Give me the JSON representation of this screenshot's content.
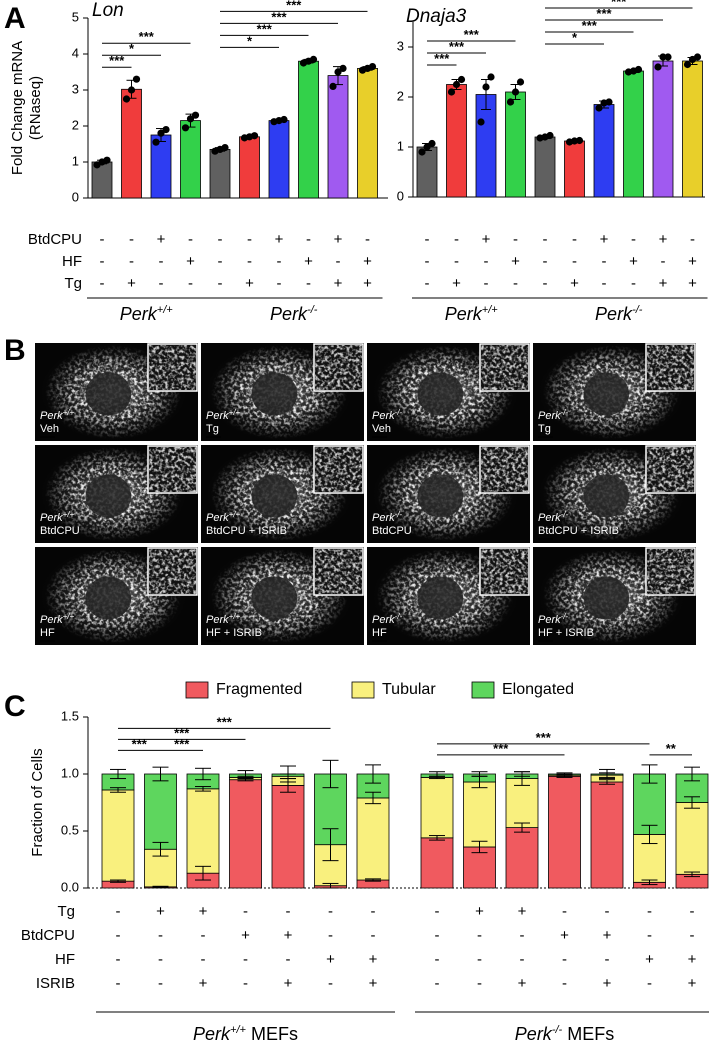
{
  "panel_labels": [
    "A",
    "B",
    "C"
  ],
  "chart_data": [
    {
      "type": "bar",
      "title": "Lon",
      "ylabel": [
        "Fold Change mRNA",
        "(RNaseq)"
      ],
      "ylim": [
        0,
        5
      ],
      "yticks": [
        0,
        1,
        2,
        3,
        4,
        5
      ],
      "conditions": [
        {
          "name": "BtdCPU",
          "color": "#2e3df2"
        },
        {
          "name": "HF",
          "color": "#33d14a"
        },
        {
          "name": "Tg",
          "color": "#f03c3c"
        }
      ],
      "groups": [
        {
          "name": "Perk",
          "sup": "+/+",
          "bars": [
            {
              "color": "#606060",
              "value": 1.0,
              "error": 0.05,
              "points": [
                0.92,
                1.0,
                1.05
              ],
              "signs": [
                "-",
                "-",
                "-"
              ]
            },
            {
              "color": "#f03c3c",
              "value": 3.02,
              "error": 0.25,
              "points": [
                2.75,
                3.0,
                3.3
              ],
              "signs": [
                "-",
                "-",
                "+"
              ]
            },
            {
              "color": "#2e3df2",
              "value": 1.75,
              "error": 0.18,
              "points": [
                1.55,
                1.8,
                1.9
              ],
              "signs": [
                "+",
                "-",
                "-"
              ]
            },
            {
              "color": "#33d14a",
              "value": 2.15,
              "error": 0.18,
              "points": [
                1.95,
                2.2,
                2.3
              ],
              "signs": [
                "-",
                "+",
                "-"
              ]
            }
          ],
          "comparisons": [
            {
              "pair": [
                0,
                1
              ],
              "label": "***"
            },
            {
              "pair": [
                0,
                2
              ],
              "label": "*"
            },
            {
              "pair": [
                0,
                3
              ],
              "label": "***"
            }
          ]
        },
        {
          "name": "Perk",
          "sup": "-/-",
          "bars": [
            {
              "color": "#606060",
              "value": 1.35,
              "error": 0.05,
              "points": [
                1.3,
                1.35,
                1.4
              ],
              "signs": [
                "-",
                "-",
                "-"
              ]
            },
            {
              "color": "#f03c3c",
              "value": 1.7,
              "error": 0.03,
              "points": [
                1.67,
                1.7,
                1.73
              ],
              "signs": [
                "-",
                "-",
                "+"
              ]
            },
            {
              "color": "#2e3df2",
              "value": 2.15,
              "error": 0.03,
              "points": [
                2.12,
                2.15,
                2.18
              ],
              "signs": [
                "+",
                "-",
                "-"
              ]
            },
            {
              "color": "#33d14a",
              "value": 3.8,
              "error": 0.05,
              "points": [
                3.75,
                3.8,
                3.85
              ],
              "signs": [
                "-",
                "+",
                "-"
              ]
            },
            {
              "color": "#a05af0",
              "value": 3.4,
              "error": 0.25,
              "points": [
                3.1,
                3.5,
                3.6
              ],
              "signs": [
                "+",
                "-",
                "+"
              ]
            },
            {
              "color": "#e8cf2a",
              "value": 3.6,
              "error": 0.05,
              "points": [
                3.55,
                3.6,
                3.65
              ],
              "signs": [
                "-",
                "+",
                "+"
              ]
            }
          ],
          "comparisons": [
            {
              "pair": [
                0,
                2
              ],
              "label": "*"
            },
            {
              "pair": [
                0,
                3
              ],
              "label": "***"
            },
            {
              "pair": [
                0,
                4
              ],
              "label": "***"
            },
            {
              "pair": [
                0,
                5
              ],
              "label": "***"
            }
          ]
        }
      ]
    },
    {
      "type": "bar",
      "title": "Dnaja3",
      "ylim": [
        0,
        3.5
      ],
      "yticks": [
        0,
        1,
        2,
        3
      ],
      "groups": [
        {
          "name": "Perk",
          "sup": "+/+",
          "bars": [
            {
              "color": "#606060",
              "value": 1.0,
              "error": 0.07,
              "points": [
                0.9,
                1.0,
                1.07
              ],
              "signs": [
                "-",
                "-",
                "-"
              ]
            },
            {
              "color": "#f03c3c",
              "value": 2.25,
              "error": 0.1,
              "points": [
                2.1,
                2.25,
                2.35
              ],
              "signs": [
                "-",
                "-",
                "+"
              ]
            },
            {
              "color": "#2e3df2",
              "value": 2.05,
              "error": 0.3,
              "points": [
                1.5,
                2.2,
                2.4
              ],
              "signs": [
                "+",
                "-",
                "-"
              ]
            },
            {
              "color": "#33d14a",
              "value": 2.1,
              "error": 0.15,
              "points": [
                1.9,
                2.1,
                2.3
              ],
              "signs": [
                "-",
                "+",
                "-"
              ]
            }
          ],
          "comparisons": [
            {
              "pair": [
                0,
                1
              ],
              "label": "***"
            },
            {
              "pair": [
                0,
                2
              ],
              "label": "***"
            },
            {
              "pair": [
                0,
                3
              ],
              "label": "***"
            }
          ]
        },
        {
          "name": "Perk",
          "sup": "-/-",
          "bars": [
            {
              "color": "#606060",
              "value": 1.2,
              "error": 0.03,
              "points": [
                1.18,
                1.2,
                1.23
              ],
              "signs": [
                "-",
                "-",
                "-"
              ]
            },
            {
              "color": "#f03c3c",
              "value": 1.12,
              "error": 0.02,
              "points": [
                1.1,
                1.12,
                1.13
              ],
              "signs": [
                "-",
                "-",
                "+"
              ]
            },
            {
              "color": "#2e3df2",
              "value": 1.85,
              "error": 0.07,
              "points": [
                1.78,
                1.88,
                1.9
              ],
              "signs": [
                "+",
                "-",
                "-"
              ]
            },
            {
              "color": "#33d14a",
              "value": 2.52,
              "error": 0.03,
              "points": [
                2.5,
                2.52,
                2.55
              ],
              "signs": [
                "-",
                "+",
                "-"
              ]
            },
            {
              "color": "#a05af0",
              "value": 2.72,
              "error": 0.1,
              "points": [
                2.6,
                2.8,
                2.8
              ],
              "signs": [
                "+",
                "-",
                "+"
              ]
            },
            {
              "color": "#e8cf2a",
              "value": 2.72,
              "error": 0.07,
              "points": [
                2.65,
                2.75,
                2.8
              ],
              "signs": [
                "-",
                "+",
                "+"
              ]
            }
          ],
          "comparisons": [
            {
              "pair": [
                0,
                2
              ],
              "label": "*"
            },
            {
              "pair": [
                0,
                3
              ],
              "label": "***"
            },
            {
              "pair": [
                0,
                4
              ],
              "label": "***"
            },
            {
              "pair": [
                0,
                5
              ],
              "label": "***"
            }
          ]
        }
      ]
    },
    {
      "type": "stacked_bar",
      "ylabel": "Fraction of Cells",
      "ylim": [
        0,
        1.5
      ],
      "yticks": [
        {
          "value": 0,
          "label": "0.0"
        },
        0.5,
        {
          "value": 1,
          "label": "1.0"
        },
        1.5
      ],
      "series": [
        {
          "name": "Fragmented",
          "color": "#f05a5f"
        },
        {
          "name": "Tubular",
          "color": "#f9f07e"
        },
        {
          "name": "Elongated",
          "color": "#5ed65e"
        }
      ],
      "conditions": [
        {
          "name": "Tg",
          "color": "#f03c3c"
        },
        {
          "name": "BtdCPU",
          "color": "#2e3df2"
        },
        {
          "name": "HF",
          "color": "#33d14a"
        },
        {
          "name": "ISRIB",
          "color": "#000000"
        }
      ],
      "groups": [
        {
          "name": "Perk",
          "sup": "+/+",
          "suffix": " MEFs",
          "bars": [
            {
              "segments": [
                0.06,
                0.8,
                0.14
              ],
              "errors": [
                0.01,
                0.02,
                0.04
              ],
              "sign_color": "#000000",
              "signs": [
                "-",
                "-",
                "-",
                "-"
              ]
            },
            {
              "segments": [
                0.01,
                0.33,
                0.66
              ],
              "errors": [
                0.005,
                0.06,
                0.06
              ],
              "sign_color": "#f03c3c",
              "signs": [
                "+",
                "-",
                "-",
                "-"
              ]
            },
            {
              "segments": [
                0.13,
                0.74,
                0.13
              ],
              "errors": [
                0.06,
                0.02,
                0.05
              ],
              "sign_color": "#f03c3c",
              "signs": [
                "+",
                "-",
                "-",
                "+"
              ]
            },
            {
              "segments": [
                0.95,
                0.02,
                0.03
              ],
              "errors": [
                0.01,
                0.01,
                0.03
              ],
              "sign_color": "#2e3df2",
              "signs": [
                "-",
                "+",
                "-",
                "-"
              ]
            },
            {
              "segments": [
                0.9,
                0.08,
                0.02
              ],
              "errors": [
                0.06,
                0.02,
                0.07
              ],
              "sign_color": "#2e3df2",
              "signs": [
                "-",
                "+",
                "-",
                "+"
              ]
            },
            {
              "segments": [
                0.02,
                0.36,
                0.62
              ],
              "errors": [
                0.02,
                0.14,
                0.12
              ],
              "sign_color": "#33d14a",
              "signs": [
                "-",
                "-",
                "+",
                "-"
              ]
            },
            {
              "segments": [
                0.07,
                0.72,
                0.21
              ],
              "errors": [
                0.01,
                0.05,
                0.08
              ],
              "sign_color": "#33d14a",
              "signs": [
                "-",
                "-",
                "+",
                "+"
              ]
            }
          ],
          "comparisons": [
            {
              "pair": [
                0,
                1
              ],
              "label": "***",
              "color": "#33c43a"
            },
            {
              "pair": [
                1,
                2
              ],
              "label": "***",
              "color": "#33c43a"
            },
            {
              "pair": [
                0,
                3
              ],
              "label": "***",
              "color": "#e8282d"
            },
            {
              "pair": [
                0,
                5
              ],
              "label": "***",
              "color": "#33c43a"
            }
          ]
        },
        {
          "name": "Perk",
          "sup": "-/-",
          "suffix": " MEFs",
          "bars": [
            {
              "segments": [
                0.44,
                0.53,
                0.03
              ],
              "errors": [
                0.02,
                0.01,
                0.02
              ],
              "sign_color": "#000000",
              "signs": [
                "-",
                "-",
                "-",
                "-"
              ]
            },
            {
              "segments": [
                0.36,
                0.57,
                0.07
              ],
              "errors": [
                0.05,
                0.05,
                0.02
              ],
              "sign_color": "#f03c3c",
              "signs": [
                "+",
                "-",
                "-",
                "-"
              ]
            },
            {
              "segments": [
                0.53,
                0.43,
                0.04
              ],
              "errors": [
                0.04,
                0.06,
                0.02
              ],
              "sign_color": "#f03c3c",
              "signs": [
                "+",
                "-",
                "-",
                "+"
              ]
            },
            {
              "segments": [
                0.98,
                0.01,
                0.01
              ],
              "errors": [
                0.01,
                0.01,
                0.01
              ],
              "sign_color": "#2e3df2",
              "signs": [
                "-",
                "+",
                "-",
                "-"
              ]
            },
            {
              "segments": [
                0.93,
                0.06,
                0.01
              ],
              "errors": [
                0.02,
                0.02,
                0.04
              ],
              "sign_color": "#2e3df2",
              "signs": [
                "-",
                "+",
                "-",
                "+"
              ]
            },
            {
              "segments": [
                0.05,
                0.42,
                0.53
              ],
              "errors": [
                0.02,
                0.08,
                0.08
              ],
              "sign_color": "#33d14a",
              "signs": [
                "-",
                "-",
                "+",
                "-"
              ]
            },
            {
              "segments": [
                0.12,
                0.63,
                0.25
              ],
              "errors": [
                0.02,
                0.05,
                0.06
              ],
              "sign_color": "#33d14a",
              "signs": [
                "-",
                "-",
                "+",
                "+"
              ]
            }
          ],
          "comparisons": [
            {
              "pair": [
                5,
                6
              ],
              "label": "**",
              "color": "#33c43a"
            },
            {
              "pair": [
                0,
                3
              ],
              "label": "***",
              "color": "#e8282d"
            },
            {
              "pair": [
                0,
                5
              ],
              "label": "***",
              "color": "#33c43a"
            }
          ]
        }
      ]
    }
  ],
  "micrographs": [
    {
      "genotype": {
        "name": "Perk",
        "sup": "+/+"
      },
      "treatment": "Veh"
    },
    {
      "genotype": {
        "name": "Perk",
        "sup": "+/+"
      },
      "treatment": "Tg"
    },
    {
      "genotype": {
        "name": "Perk",
        "sup": "-/-"
      },
      "treatment": "Veh"
    },
    {
      "genotype": {
        "name": "Perk",
        "sup": "-/-"
      },
      "treatment": "Tg"
    },
    {
      "genotype": {
        "name": "Perk",
        "sup": "+/+"
      },
      "treatment": "BtdCPU"
    },
    {
      "genotype": {
        "name": "Perk",
        "sup": "+/+"
      },
      "treatment": "BtdCPU + ISRIB"
    },
    {
      "genotype": {
        "name": "Perk",
        "sup": "-/-"
      },
      "treatment": "BtdCPU"
    },
    {
      "genotype": {
        "name": "Perk",
        "sup": "-/-"
      },
      "treatment": "BtdCPU + ISRIB"
    },
    {
      "genotype": {
        "name": "Perk",
        "sup": "+/+"
      },
      "treatment": "HF"
    },
    {
      "genotype": {
        "name": "Perk",
        "sup": "+/+"
      },
      "treatment": "HF + ISRIB"
    },
    {
      "genotype": {
        "name": "Perk",
        "sup": "-/-"
      },
      "treatment": "HF"
    },
    {
      "genotype": {
        "name": "Perk",
        "sup": "-/-"
      },
      "treatment": "HF + ISRIB"
    }
  ]
}
